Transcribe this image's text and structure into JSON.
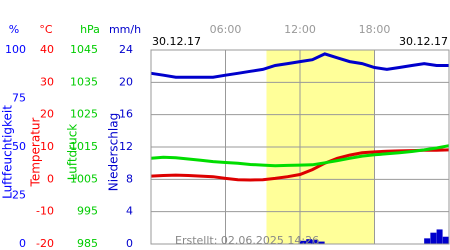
{
  "chart_data": {
    "type": "line",
    "date_left": "30.12.17",
    "date_right": "30.12.17",
    "created": "Erstellt: 02.06.2025 14:26",
    "xlim": [
      0,
      24
    ],
    "xticks": [
      {
        "value": 6,
        "label": "06:00"
      },
      {
        "value": 12,
        "label": "12:00"
      },
      {
        "value": 18,
        "label": "18:00"
      }
    ],
    "daylight": [
      9.3,
      18
    ],
    "grid": true,
    "axes": [
      {
        "unit": "%",
        "title": "Luftfeuchtigkeit",
        "color": "#0000ff",
        "lim": [
          0,
          100
        ],
        "ticks": [
          100,
          75,
          50,
          25,
          0
        ]
      },
      {
        "unit": "°C",
        "title": "Temperatur",
        "color": "#ff0000",
        "lim": [
          -20,
          40
        ],
        "ticks": [
          40,
          30,
          20,
          10,
          0,
          -10,
          -20
        ]
      },
      {
        "unit": "hPa",
        "title": "Luftdruck",
        "color": "#00cc00",
        "lim": [
          985,
          1045
        ],
        "ticks": [
          1045,
          1035,
          1025,
          1015,
          1005,
          995,
          985
        ]
      },
      {
        "unit": "mm/h",
        "title": "Niederschlag",
        "color": "#0000cc",
        "lim": [
          0,
          24
        ],
        "ticks": [
          24,
          20,
          16,
          12,
          8,
          4,
          0
        ]
      }
    ],
    "x": [
      0,
      1,
      2,
      3,
      4,
      5,
      6,
      7,
      8,
      9,
      10,
      11,
      12,
      13,
      14,
      15,
      16,
      17,
      18,
      19,
      20,
      21,
      22,
      23,
      24
    ],
    "series": [
      {
        "color": "#0000cc",
        "axis": 0,
        "values": [
          88,
          87,
          86,
          86,
          86,
          86,
          87,
          88,
          89,
          90,
          92,
          93,
          94,
          95,
          98,
          96,
          94,
          93,
          91,
          90,
          91,
          92,
          93,
          92,
          92
        ]
      },
      {
        "color": "#dd0000",
        "axis": 1,
        "values": [
          1.0,
          1.2,
          1.3,
          1.2,
          1.0,
          0.8,
          0.3,
          -0.1,
          -0.2,
          -0.1,
          0.3,
          0.8,
          1.5,
          3.0,
          5.0,
          6.5,
          7.5,
          8.2,
          8.5,
          8.7,
          8.8,
          8.9,
          9.0,
          9.0,
          9.1
        ]
      },
      {
        "color": "#00dd00",
        "axis": 2,
        "values": [
          1011.5,
          1011.8,
          1011.7,
          1011.3,
          1010.9,
          1010.5,
          1010.2,
          1010.0,
          1009.6,
          1009.4,
          1009.2,
          1009.3,
          1009.4,
          1009.5,
          1010.1,
          1010.8,
          1011.5,
          1012.2,
          1012.6,
          1012.9,
          1013.2,
          1013.6,
          1014.1,
          1014.7,
          1015.4
        ]
      }
    ],
    "precipitation": {
      "color": "#0000cc",
      "axis": 3,
      "x": [
        12,
        12.5,
        13,
        13.5,
        22,
        22.5,
        23,
        23.5
      ],
      "values": [
        0.4,
        0.6,
        0.5,
        0.3,
        0.7,
        1.4,
        1.8,
        0.9
      ]
    }
  }
}
